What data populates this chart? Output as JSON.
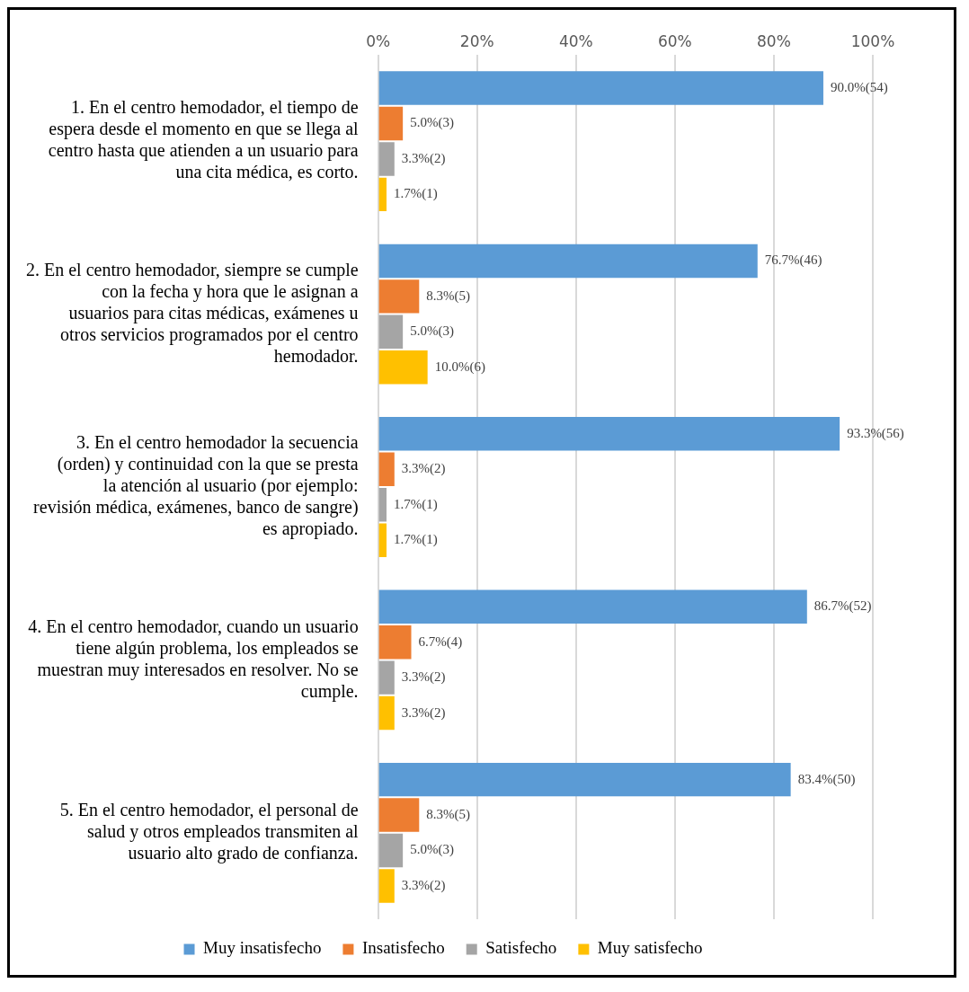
{
  "chart_data": {
    "type": "bar",
    "orientation": "horizontal",
    "categories": [
      "1. En el centro hemodador, el tiempo de espera desde el momento en que se llega al centro hasta que atienden a un usuario para una cita médica, es corto.",
      "2. En el centro hemodador, siempre se cumple con la fecha y hora que le asignan a usuarios para citas médicas, exámenes u otros servicios programados por el centro hemodador.",
      "3. En el centro hemodador la secuencia (orden) y continuidad con la que se presta la atención al usuario (por ejemplo: revisión médica, exámenes, banco de sangre) es apropiado.",
      "4. En el centro hemodador, cuando un usuario tiene algún problema, los empleados se muestran muy interesados en resolver. No se cumple.",
      "5. En el centro hemodador, el personal de salud y otros empleados transmiten al usuario alto grado de confianza."
    ],
    "series": [
      {
        "name": "Muy insatisfecho",
        "color": "#5b9bd5",
        "values": [
          90.0,
          76.7,
          93.3,
          86.7,
          83.4
        ],
        "value_labels": [
          "90.0%(54)",
          "76.7%(46)",
          "93.3%(56)",
          "86.7%(52)",
          "83.4%(50)"
        ]
      },
      {
        "name": "Insatisfecho",
        "color": "#ed7d31",
        "values": [
          5.0,
          8.3,
          3.3,
          6.7,
          8.3
        ],
        "value_labels": [
          "5.0%(3)",
          "8.3%(5)",
          "3.3%(2)",
          "6.7%(4)",
          "8.3%(5)"
        ]
      },
      {
        "name": "Satisfecho",
        "color": "#a5a5a5",
        "values": [
          3.3,
          5.0,
          1.7,
          3.3,
          5.0
        ],
        "value_labels": [
          "3.3%(2)",
          "5.0%(3)",
          "1.7%(1)",
          "3.3%(2)",
          "5.0%(3)"
        ]
      },
      {
        "name": "Muy satisfecho",
        "color": "#ffc000",
        "values": [
          1.7,
          10.0,
          1.7,
          3.3,
          3.3
        ],
        "value_labels": [
          "1.7%(1)",
          "10.0%(6)",
          "1.7%(1)",
          "3.3%(2)",
          "3.3%(2)"
        ]
      }
    ],
    "xlim": [
      0,
      100
    ],
    "xticks": [
      {
        "value": 0,
        "label": "0%"
      },
      {
        "value": 20,
        "label": "20%"
      },
      {
        "value": 40,
        "label": "40%"
      },
      {
        "value": 60,
        "label": "60%"
      },
      {
        "value": 80,
        "label": "80%"
      },
      {
        "value": 100,
        "label": "100%"
      }
    ],
    "grid": "x",
    "legend": "bottom"
  }
}
